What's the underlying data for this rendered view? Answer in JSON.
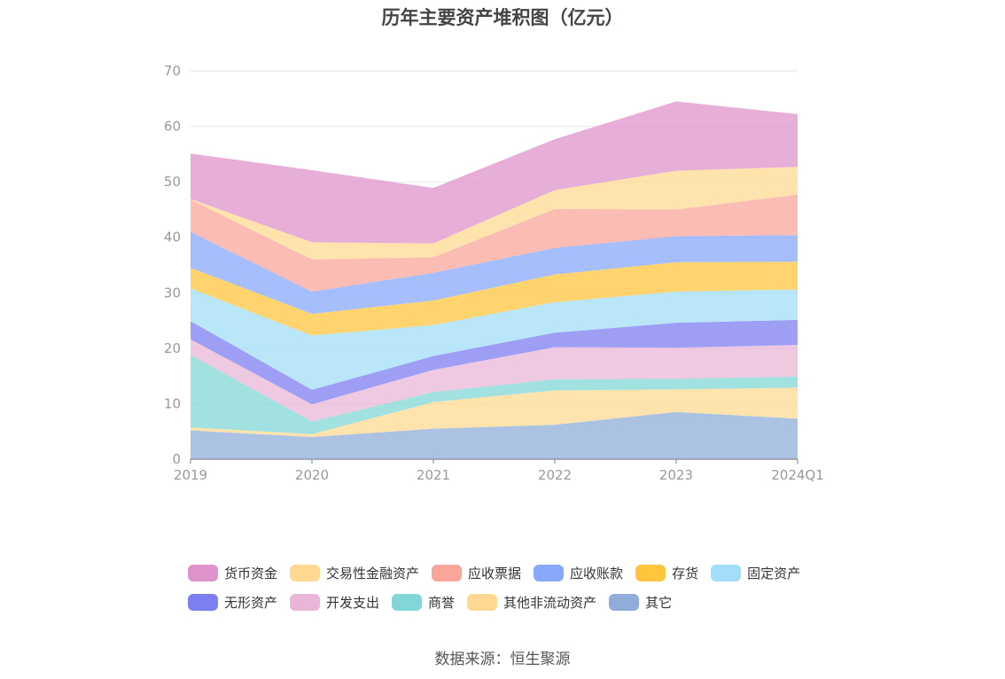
{
  "chart_data": {
    "type": "area",
    "stacked": true,
    "title": "历年主要资产堆积图（亿元）",
    "x": [
      "2019",
      "2020",
      "2021",
      "2022",
      "2023",
      "2024Q1"
    ],
    "ylim": [
      0,
      70
    ],
    "yticks": [
      "0",
      "10",
      "20",
      "30",
      "40",
      "50",
      "60",
      "70"
    ],
    "grid": true,
    "legend_position": "bottom",
    "series": [
      {
        "name": "其它",
        "color": "#8fadd8",
        "values": [
          5.2,
          4.0,
          5.5,
          6.2,
          8.5,
          7.3
        ]
      },
      {
        "name": "其他非流动资产",
        "color": "#ffd991",
        "values": [
          0.5,
          0.5,
          4.8,
          6.2,
          4.1,
          5.6
        ]
      },
      {
        "name": "商誉",
        "color": "#82d7d6",
        "values": [
          13.1,
          2.3,
          1.8,
          2.0,
          1.9,
          2.0
        ]
      },
      {
        "name": "开发支出",
        "color": "#eab6d8",
        "values": [
          2.8,
          3.1,
          4.0,
          5.8,
          5.6,
          5.7
        ]
      },
      {
        "name": "无形资产",
        "color": "#7d7ef1",
        "values": [
          3.3,
          2.6,
          2.5,
          2.6,
          4.5,
          4.5
        ]
      },
      {
        "name": "固定资产",
        "color": "#a3def8",
        "values": [
          5.9,
          9.8,
          5.6,
          5.5,
          5.6,
          5.5
        ]
      },
      {
        "name": "存货",
        "color": "#ffc53d",
        "values": [
          3.7,
          3.9,
          4.4,
          5.0,
          5.3,
          5.0
        ]
      },
      {
        "name": "应收账款",
        "color": "#88a8fb",
        "values": [
          6.5,
          4.0,
          5.0,
          4.8,
          4.7,
          4.8
        ]
      },
      {
        "name": "应收票据",
        "color": "#f9a59a",
        "values": [
          5.8,
          5.8,
          2.8,
          7.0,
          4.8,
          7.3
        ]
      },
      {
        "name": "交易性金融资产",
        "color": "#ffd991",
        "values": [
          0.1,
          3.1,
          2.5,
          3.4,
          7.0,
          5.0
        ]
      },
      {
        "name": "货币资金",
        "color": "#df93cb",
        "values": [
          8.2,
          13.0,
          10.0,
          9.2,
          12.5,
          9.5
        ]
      }
    ],
    "legend_order": [
      "货币资金",
      "交易性金融资产",
      "应收票据",
      "应收账款",
      "存货",
      "固定资产",
      "无形资产",
      "开发支出",
      "商誉",
      "其他非流动资产",
      "其它"
    ]
  },
  "source_text": "数据来源：恒生聚源"
}
